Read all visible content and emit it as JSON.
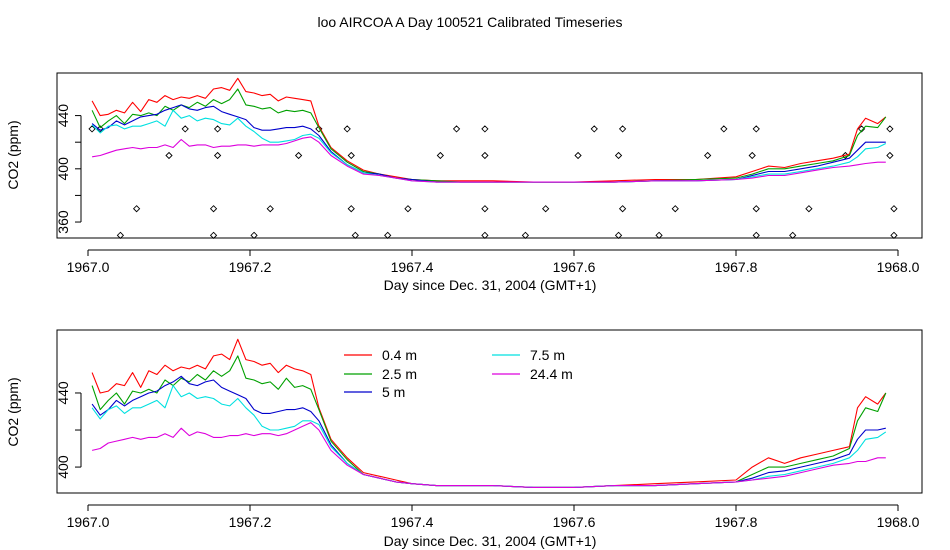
{
  "title": "loo AIRCOA A  Day 100521  Calibrated Timeseries",
  "chart_data": [
    {
      "type": "line",
      "xlabel": "Day since Dec. 31, 2004 (GMT+1)",
      "ylabel": "CO2 (ppm)",
      "xlim": [
        1967.0,
        1968.0
      ],
      "ylim": [
        348,
        472
      ],
      "xticks": [
        "1967.0",
        "1967.2",
        "1967.4",
        "1967.6",
        "1967.8",
        "1968.0"
      ],
      "yticks": [
        "360",
        "",
        "400",
        "",
        "440"
      ],
      "ytick_values": [
        360,
        380,
        400,
        420,
        440
      ],
      "grid": false,
      "x": [
        1967.005,
        1967.015,
        1967.025,
        1967.035,
        1967.045,
        1967.055,
        1967.065,
        1967.075,
        1967.085,
        1967.095,
        1967.105,
        1967.115,
        1967.125,
        1967.135,
        1967.145,
        1967.155,
        1967.165,
        1967.175,
        1967.185,
        1967.195,
        1967.205,
        1967.215,
        1967.225,
        1967.235,
        1967.245,
        1967.255,
        1967.265,
        1967.275,
        1967.285,
        1967.3,
        1967.32,
        1967.34,
        1967.36,
        1967.38,
        1967.4,
        1967.43,
        1967.46,
        1967.5,
        1967.55,
        1967.6,
        1967.65,
        1967.7,
        1967.75,
        1967.8,
        1967.82,
        1967.84,
        1967.86,
        1967.88,
        1967.9,
        1967.92,
        1967.94,
        1967.95,
        1967.96,
        1967.975,
        1967.985
      ],
      "series": [
        {
          "name": "0.4 m",
          "color": "#ff0000",
          "values": [
            451,
            440,
            441,
            444,
            442,
            450,
            443,
            452,
            450,
            455,
            452,
            454,
            453,
            455,
            453,
            460,
            461,
            459,
            468,
            458,
            457,
            455,
            456,
            451,
            454,
            453,
            452,
            451,
            432,
            416,
            406,
            399,
            396,
            394,
            392,
            391,
            391,
            391,
            390,
            390,
            391,
            392,
            392,
            394,
            398,
            402,
            401,
            404,
            406,
            408,
            411,
            430,
            438,
            434,
            439
          ]
        },
        {
          "name": "2.5 m",
          "color": "#00a000",
          "values": [
            444,
            431,
            436,
            440,
            434,
            441,
            440,
            442,
            440,
            447,
            444,
            448,
            446,
            450,
            447,
            452,
            449,
            452,
            460,
            448,
            447,
            445,
            446,
            442,
            444,
            443,
            444,
            442,
            431,
            415,
            405,
            398,
            396,
            393,
            392,
            391,
            390,
            390,
            390,
            390,
            390,
            391,
            392,
            393,
            396,
            400,
            400,
            402,
            404,
            406,
            410,
            425,
            432,
            431,
            439
          ]
        },
        {
          "name": "5 m",
          "color": "#0000cc",
          "values": [
            434,
            429,
            431,
            436,
            433,
            436,
            439,
            440,
            441,
            444,
            446,
            448,
            445,
            444,
            446,
            447,
            443,
            441,
            439,
            437,
            431,
            429,
            429,
            430,
            431,
            431,
            432,
            430,
            425,
            413,
            403,
            397,
            396,
            393,
            392,
            390,
            390,
            390,
            390,
            390,
            390,
            391,
            391,
            392,
            395,
            398,
            398,
            400,
            402,
            405,
            408,
            414,
            420,
            420,
            420
          ]
        },
        {
          "name": "7.5 m",
          "color": "#00e0e0",
          "values": [
            433,
            427,
            432,
            433,
            430,
            432,
            432,
            434,
            436,
            432,
            444,
            438,
            440,
            436,
            438,
            437,
            434,
            433,
            438,
            432,
            428,
            423,
            420,
            420,
            421,
            422,
            425,
            426,
            423,
            412,
            403,
            397,
            395,
            393,
            391,
            390,
            390,
            390,
            390,
            390,
            390,
            391,
            391,
            392,
            394,
            396,
            396,
            398,
            400,
            402,
            405,
            409,
            415,
            416,
            419
          ]
        },
        {
          "name": "24.4 m",
          "color": "#dd00dd",
          "values": [
            409,
            410,
            412,
            414,
            415,
            416,
            415,
            416,
            416,
            418,
            416,
            422,
            417,
            418,
            418,
            416,
            417,
            417,
            418,
            418,
            417,
            418,
            418,
            418,
            419,
            421,
            423,
            424,
            420,
            410,
            402,
            396,
            395,
            393,
            391,
            390,
            390,
            390,
            390,
            390,
            390,
            391,
            391,
            392,
            393,
            395,
            395,
            397,
            399,
            401,
            402,
            403,
            404,
            405,
            405
          ]
        }
      ],
      "points": {
        "x": [
          1967.005,
          1967.015,
          1967.04,
          1967.06,
          1967.1,
          1967.12,
          1967.155,
          1967.155,
          1967.16,
          1967.16,
          1967.205,
          1967.225,
          1967.26,
          1967.285,
          1967.32,
          1967.325,
          1967.325,
          1967.33,
          1967.37,
          1967.395,
          1967.435,
          1967.455,
          1967.49,
          1967.49,
          1967.49,
          1967.49,
          1967.54,
          1967.565,
          1967.605,
          1967.625,
          1967.655,
          1967.655,
          1967.66,
          1967.66,
          1967.705,
          1967.725,
          1967.765,
          1967.785,
          1967.82,
          1967.825,
          1967.825,
          1967.825,
          1967.87,
          1967.89,
          1967.935,
          1967.955,
          1967.99,
          1967.99,
          1967.995,
          1967.995
        ],
        "values": [
          430,
          430,
          350,
          370,
          410,
          430,
          350,
          370,
          410,
          430,
          350,
          370,
          410,
          430,
          430,
          410,
          370,
          350,
          350,
          370,
          410,
          430,
          350,
          370,
          410,
          430,
          350,
          370,
          410,
          430,
          350,
          410,
          430,
          370,
          350,
          370,
          410,
          430,
          410,
          350,
          370,
          430,
          350,
          370,
          410,
          430,
          430,
          410,
          370,
          350
        ]
      }
    },
    {
      "type": "line",
      "xlabel": "Day since Dec. 31, 2004 (GMT+1)",
      "ylabel": "CO2 (ppm)",
      "xlim": [
        1967.0,
        1968.0
      ],
      "ylim": [
        386,
        474
      ],
      "xticks": [
        "1967.0",
        "1967.2",
        "1967.4",
        "1967.6",
        "1967.8",
        "1968.0"
      ],
      "yticks": [
        "400",
        "",
        "440"
      ],
      "ytick_values": [
        400,
        420,
        440
      ],
      "grid": false,
      "legend": "top-center",
      "x": [
        1967.005,
        1967.015,
        1967.025,
        1967.035,
        1967.045,
        1967.055,
        1967.065,
        1967.075,
        1967.085,
        1967.095,
        1967.105,
        1967.115,
        1967.125,
        1967.135,
        1967.145,
        1967.155,
        1967.165,
        1967.175,
        1967.185,
        1967.195,
        1967.205,
        1967.215,
        1967.225,
        1967.235,
        1967.245,
        1967.255,
        1967.265,
        1967.275,
        1967.285,
        1967.3,
        1967.32,
        1967.34,
        1967.36,
        1967.38,
        1967.4,
        1967.43,
        1967.46,
        1967.5,
        1967.55,
        1967.6,
        1967.65,
        1967.7,
        1967.75,
        1967.8,
        1967.82,
        1967.84,
        1967.86,
        1967.88,
        1967.9,
        1967.92,
        1967.94,
        1967.95,
        1967.96,
        1967.975,
        1967.985
      ],
      "series": [
        {
          "name": "0.4 m",
          "color": "#ff0000",
          "values": [
            451,
            440,
            441,
            445,
            444,
            451,
            443,
            452,
            450,
            455,
            452,
            454,
            453,
            455,
            453,
            460,
            461,
            458,
            469,
            458,
            457,
            455,
            456,
            451,
            455,
            453,
            452,
            450,
            432,
            415,
            405,
            397,
            395,
            393,
            391,
            390,
            390,
            390,
            389,
            389,
            390,
            391,
            392,
            393,
            400,
            405,
            402,
            405,
            407,
            409,
            411,
            432,
            438,
            434,
            440
          ]
        },
        {
          "name": "2.5 m",
          "color": "#00a000",
          "values": [
            444,
            431,
            436,
            440,
            434,
            441,
            440,
            442,
            440,
            447,
            444,
            448,
            446,
            450,
            447,
            452,
            449,
            452,
            460,
            448,
            447,
            445,
            446,
            442,
            448,
            443,
            444,
            442,
            431,
            414,
            404,
            396,
            394,
            392,
            391,
            390,
            390,
            390,
            389,
            389,
            390,
            390,
            391,
            392,
            396,
            400,
            400,
            402,
            404,
            406,
            410,
            425,
            432,
            430,
            440
          ]
        },
        {
          "name": "5 m",
          "color": "#0000cc",
          "values": [
            434,
            428,
            431,
            436,
            433,
            436,
            438,
            440,
            441,
            444,
            446,
            449,
            445,
            444,
            446,
            447,
            443,
            441,
            439,
            437,
            431,
            429,
            429,
            430,
            431,
            431,
            432,
            430,
            425,
            412,
            402,
            396,
            394,
            392,
            391,
            390,
            390,
            390,
            389,
            389,
            390,
            390,
            391,
            392,
            394,
            397,
            398,
            400,
            402,
            404,
            407,
            415,
            420,
            420,
            421
          ]
        },
        {
          "name": "7.5 m",
          "color": "#00e0e0",
          "values": [
            432,
            426,
            431,
            433,
            429,
            432,
            432,
            434,
            436,
            432,
            444,
            438,
            440,
            437,
            438,
            437,
            434,
            433,
            437,
            432,
            428,
            422,
            420,
            420,
            421,
            422,
            425,
            425,
            423,
            411,
            402,
            396,
            394,
            392,
            391,
            390,
            390,
            390,
            389,
            389,
            390,
            390,
            391,
            392,
            393,
            395,
            396,
            398,
            400,
            402,
            405,
            409,
            415,
            416,
            419
          ]
        },
        {
          "name": "24.4 m",
          "color": "#dd00dd",
          "values": [
            409,
            410,
            413,
            414,
            415,
            416,
            415,
            416,
            416,
            418,
            416,
            421,
            417,
            419,
            418,
            416,
            416,
            417,
            417,
            418,
            417,
            418,
            418,
            417,
            418,
            420,
            422,
            424,
            420,
            409,
            401,
            396,
            394,
            392,
            391,
            390,
            390,
            390,
            389,
            389,
            390,
            390,
            391,
            392,
            393,
            394,
            395,
            397,
            399,
            401,
            402,
            403,
            403,
            405,
            405
          ]
        }
      ]
    }
  ]
}
